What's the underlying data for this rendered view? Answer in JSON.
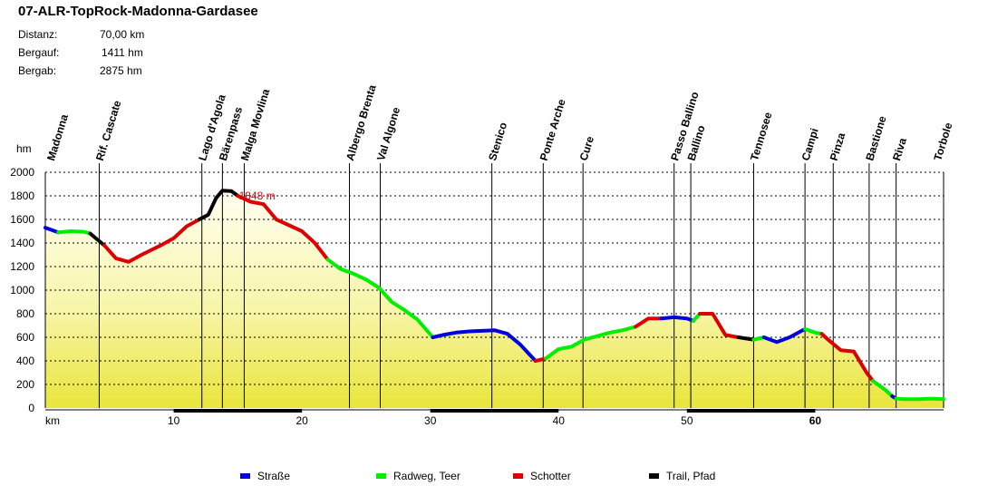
{
  "title": "07-ALR-TopRock-Madonna-Gardasee",
  "stats": [
    {
      "label": "Distanz:",
      "value": "70,00 km"
    },
    {
      "label": "Bergauf:",
      "value": "1411 hm"
    },
    {
      "label": "Bergab:",
      "value": "2875 hm"
    }
  ],
  "legend": [
    {
      "name": "Straße",
      "color": "#0000dd"
    },
    {
      "name": "Radweg, Teer",
      "color": "#00ee00"
    },
    {
      "name": "Schotter",
      "color": "#dd0000"
    },
    {
      "name": "Trail, Pfad",
      "color": "#000000"
    }
  ],
  "chart_data": {
    "type": "area",
    "title": "07-ALR-TopRock-Madonna-Gardasee",
    "xlabel": "km",
    "ylabel": "hm",
    "xlim": [
      0,
      70
    ],
    "ylim": [
      0,
      2000
    ],
    "x_ticks": [
      {
        "value": 10,
        "label": "10",
        "bold": false
      },
      {
        "value": 20,
        "label": "20",
        "bold": false
      },
      {
        "value": 30,
        "label": "30",
        "bold": false
      },
      {
        "value": 40,
        "label": "40",
        "bold": false
      },
      {
        "value": 50,
        "label": "50",
        "bold": false
      },
      {
        "value": 60,
        "label": "60",
        "bold": true
      }
    ],
    "y_ticks": [
      0,
      200,
      400,
      600,
      800,
      1000,
      1200,
      1400,
      1600,
      1800,
      2000
    ],
    "grid": true,
    "max_annotation": {
      "x": 15.3,
      "y": 1848,
      "label": "1848 m"
    },
    "waypoints": [
      {
        "name": "Madonna",
        "x": 0.4,
        "line": false
      },
      {
        "name": "Rif. Cascate",
        "x": 4.2,
        "line": true
      },
      {
        "name": "Lago d'Agola",
        "x": 12.2,
        "line": true
      },
      {
        "name": "Bärenpass",
        "x": 13.8,
        "line": true
      },
      {
        "name": "Malga Movlina",
        "x": 15.5,
        "line": true
      },
      {
        "name": "Albergo Brenta",
        "x": 23.7,
        "line": true
      },
      {
        "name": "Val Algone",
        "x": 26.1,
        "line": true
      },
      {
        "name": "Stenico",
        "x": 34.8,
        "line": true
      },
      {
        "name": "Ponte Arche",
        "x": 38.8,
        "line": true
      },
      {
        "name": "Cure",
        "x": 41.9,
        "line": true
      },
      {
        "name": "Passo Ballino",
        "x": 49.0,
        "line": true
      },
      {
        "name": "Ballino",
        "x": 50.3,
        "line": true
      },
      {
        "name": "Tennosee",
        "x": 55.2,
        "line": true
      },
      {
        "name": "Campi",
        "x": 59.2,
        "line": true
      },
      {
        "name": "Pinza",
        "x": 61.4,
        "line": true
      },
      {
        "name": "Bastione",
        "x": 64.2,
        "line": true
      },
      {
        "name": "Riva",
        "x": 66.3,
        "line": true
      },
      {
        "name": "Torbole",
        "x": 69.5,
        "line": false
      }
    ],
    "series": [
      {
        "surface": "Straße",
        "color": "#0000dd",
        "points": [
          [
            0,
            1530
          ],
          [
            1,
            1490
          ]
        ]
      },
      {
        "surface": "Radweg, Teer",
        "color": "#00ee00",
        "points": [
          [
            1,
            1490
          ],
          [
            2,
            1500
          ],
          [
            3,
            1495
          ],
          [
            3.5,
            1480
          ]
        ]
      },
      {
        "surface": "Trail, Pfad",
        "color": "#000000",
        "points": [
          [
            3.5,
            1480
          ],
          [
            4.6,
            1380
          ]
        ]
      },
      {
        "surface": "Schotter",
        "color": "#dd0000",
        "points": [
          [
            4.6,
            1380
          ],
          [
            5.5,
            1270
          ],
          [
            6.5,
            1240
          ],
          [
            7.5,
            1300
          ],
          [
            9,
            1380
          ],
          [
            10,
            1440
          ],
          [
            11,
            1540
          ],
          [
            12,
            1600
          ]
        ]
      },
      {
        "surface": "Trail, Pfad",
        "color": "#000000",
        "points": [
          [
            12,
            1600
          ],
          [
            12.7,
            1640
          ],
          [
            13.3,
            1780
          ],
          [
            13.8,
            1845
          ],
          [
            14.5,
            1840
          ],
          [
            15,
            1800
          ]
        ]
      },
      {
        "surface": "Schotter",
        "color": "#dd0000",
        "points": [
          [
            15,
            1800
          ],
          [
            16,
            1750
          ],
          [
            17,
            1730
          ],
          [
            18,
            1600
          ],
          [
            19,
            1550
          ],
          [
            20,
            1500
          ],
          [
            21,
            1400
          ],
          [
            22,
            1260
          ]
        ]
      },
      {
        "surface": "Radweg, Teer",
        "color": "#00ee00",
        "points": [
          [
            22,
            1260
          ],
          [
            23,
            1180
          ],
          [
            24,
            1140
          ],
          [
            25,
            1090
          ],
          [
            26,
            1020
          ],
          [
            27,
            900
          ],
          [
            28,
            830
          ],
          [
            29,
            750
          ],
          [
            30.2,
            600
          ]
        ]
      },
      {
        "surface": "Straße",
        "color": "#0000dd",
        "points": [
          [
            30.2,
            600
          ],
          [
            31,
            620
          ],
          [
            32,
            640
          ],
          [
            33,
            650
          ],
          [
            34,
            655
          ],
          [
            35,
            660
          ],
          [
            36,
            630
          ],
          [
            37,
            540
          ],
          [
            38.2,
            400
          ]
        ]
      },
      {
        "surface": "Schotter",
        "color": "#dd0000",
        "points": [
          [
            38.2,
            400
          ],
          [
            39,
            420
          ]
        ]
      },
      {
        "surface": "Radweg, Teer",
        "color": "#00ee00",
        "points": [
          [
            39,
            420
          ],
          [
            40,
            500
          ],
          [
            41,
            520
          ],
          [
            42,
            580
          ],
          [
            43,
            610
          ],
          [
            44,
            640
          ],
          [
            45,
            660
          ],
          [
            46,
            690
          ]
        ]
      },
      {
        "surface": "Schotter",
        "color": "#dd0000",
        "points": [
          [
            46,
            690
          ],
          [
            47,
            760
          ],
          [
            48,
            760
          ]
        ]
      },
      {
        "surface": "Straße",
        "color": "#0000dd",
        "points": [
          [
            48,
            760
          ],
          [
            49,
            770
          ],
          [
            50,
            760
          ],
          [
            50.5,
            740
          ]
        ]
      },
      {
        "surface": "Radweg, Teer",
        "color": "#00ee00",
        "points": [
          [
            50.5,
            740
          ],
          [
            51,
            800
          ]
        ]
      },
      {
        "surface": "Schotter",
        "color": "#dd0000",
        "points": [
          [
            51,
            800
          ],
          [
            52,
            800
          ],
          [
            53,
            620
          ],
          [
            54,
            600
          ]
        ]
      },
      {
        "surface": "Trail, Pfad",
        "color": "#000000",
        "points": [
          [
            54,
            600
          ],
          [
            55.2,
            580
          ]
        ]
      },
      {
        "surface": "Radweg, Teer",
        "color": "#00ee00",
        "points": [
          [
            55.2,
            580
          ],
          [
            56,
            600
          ]
        ]
      },
      {
        "surface": "Straße",
        "color": "#0000dd",
        "points": [
          [
            56,
            600
          ],
          [
            57,
            560
          ],
          [
            58,
            600
          ],
          [
            59.2,
            670
          ]
        ]
      },
      {
        "surface": "Radweg, Teer",
        "color": "#00ee00",
        "points": [
          [
            59.2,
            670
          ],
          [
            60,
            640
          ],
          [
            60.5,
            630
          ]
        ]
      },
      {
        "surface": "Schotter",
        "color": "#dd0000",
        "points": [
          [
            60.5,
            630
          ],
          [
            61,
            580
          ],
          [
            62,
            490
          ],
          [
            63,
            480
          ],
          [
            64,
            300
          ],
          [
            64.5,
            230
          ]
        ]
      },
      {
        "surface": "Radweg, Teer",
        "color": "#00ee00",
        "points": [
          [
            64.5,
            230
          ],
          [
            65.5,
            150
          ],
          [
            66,
            100
          ]
        ]
      },
      {
        "surface": "Straße",
        "color": "#0000dd",
        "points": [
          [
            66,
            100
          ],
          [
            66.3,
            80
          ]
        ]
      },
      {
        "surface": "Radweg, Teer",
        "color": "#00ee00",
        "points": [
          [
            66.3,
            80
          ],
          [
            67,
            75
          ],
          [
            68,
            75
          ],
          [
            69,
            80
          ],
          [
            70,
            75
          ]
        ]
      }
    ]
  }
}
